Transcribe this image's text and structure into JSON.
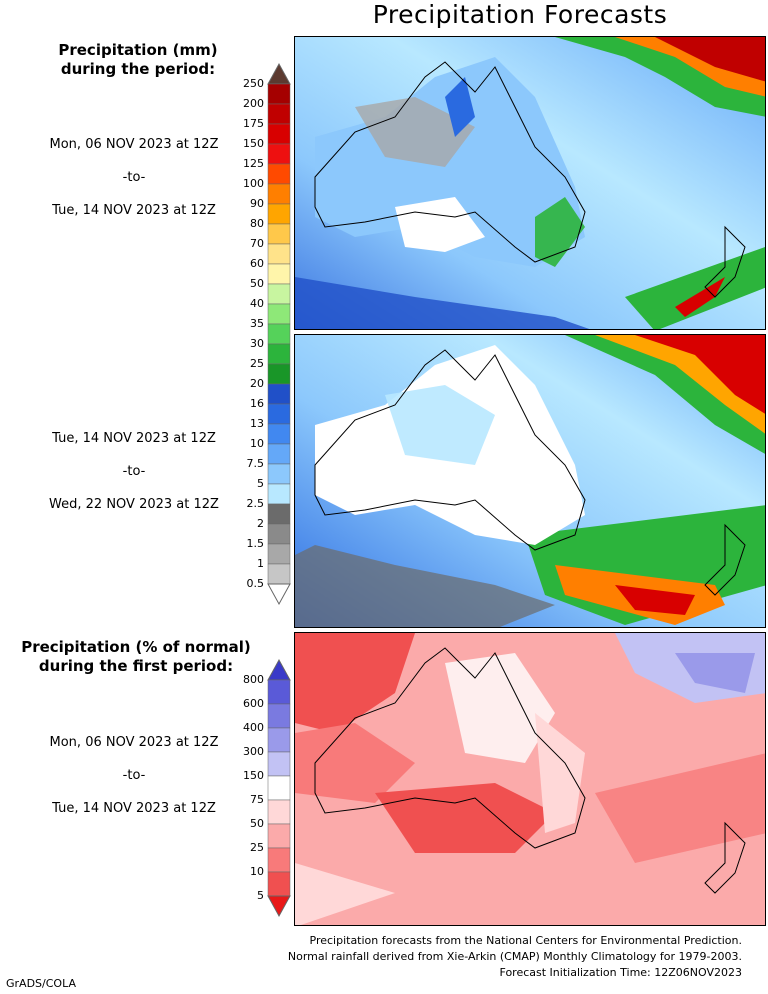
{
  "title": "Precipitation Forecasts",
  "amount_section": {
    "title_line1": "Precipitation (mm)",
    "title_line2": "during the period:",
    "period1": {
      "start": "Mon, 06 NOV 2023 at 12Z",
      "sep": "-to-",
      "end": "Tue, 14 NOV 2023 at 12Z"
    },
    "period2": {
      "start": "Tue, 14 NOV 2023 at 12Z",
      "sep": "-to-",
      "end": "Wed, 22 NOV 2023 at 12Z"
    },
    "colorbar": {
      "labels": [
        "250",
        "200",
        "175",
        "150",
        "125",
        "100",
        "90",
        "80",
        "70",
        "60",
        "50",
        "40",
        "35",
        "30",
        "25",
        "20",
        "16",
        "13",
        "10",
        "7.5",
        "5",
        "2.5",
        "2",
        "1.5",
        "1",
        "0.5"
      ],
      "colors": [
        "#5c3a30",
        "#a50000",
        "#c00000",
        "#d80000",
        "#ee1010",
        "#ff4a00",
        "#ff7f00",
        "#ffa500",
        "#ffc84a",
        "#ffe38a",
        "#fff5aa",
        "#c8f5a0",
        "#8ee878",
        "#55d25a",
        "#2cb43c",
        "#199628",
        "#2050c8",
        "#2a6ae0",
        "#4188f0",
        "#64a8f8",
        "#8cc8fc",
        "#b8e8ff",
        "#6b6b6b",
        "#8a8a8a",
        "#a8a8a8",
        "#c6c6c6",
        "#ffffff"
      ]
    }
  },
  "percent_section": {
    "title_line1": "Precipitation (% of normal)",
    "title_line2": "during the first period:",
    "period": {
      "start": "Mon, 06 NOV 2023 at 12Z",
      "sep": "-to-",
      "end": "Tue, 14 NOV 2023 at 12Z"
    },
    "colorbar": {
      "labels": [
        "800",
        "600",
        "400",
        "300",
        "150",
        "75",
        "50",
        "25",
        "10",
        "5"
      ],
      "colors": [
        "#3a3ac8",
        "#5a5ad8",
        "#7a7ae0",
        "#9a9aea",
        "#c2c2f4",
        "#ffffff",
        "#ffd8d8",
        "#fbaaaa",
        "#f87a7a",
        "#f05050",
        "#e81818"
      ]
    }
  },
  "footer": {
    "line1": "Precipitation forecasts from the National Centers for Environmental Prediction.",
    "line2": "Normal rainfall derived from Xie-Arkin (CMAP) Monthly Climatology for 1979-2003.",
    "line3": "Forecast Initialization Time: 12Z06NOV2023"
  },
  "credit": "GrADS/COLA"
}
